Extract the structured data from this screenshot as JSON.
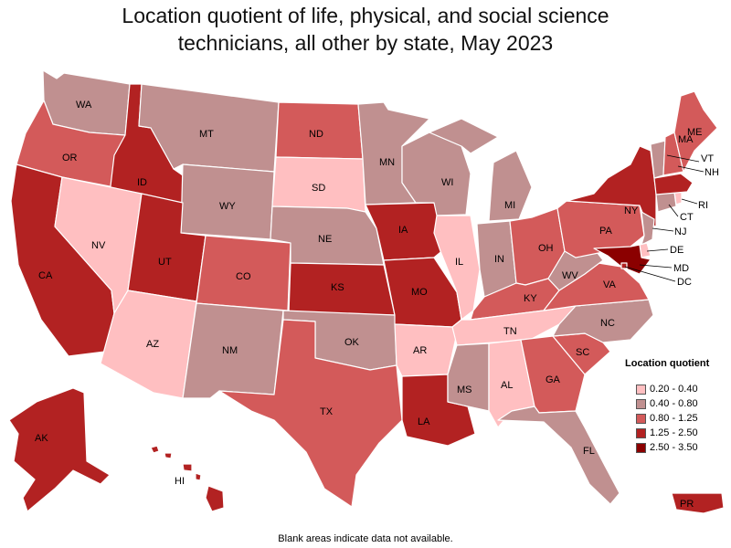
{
  "title_line1": "Location quotient of life, physical, and social science",
  "title_line2": "technicians, all other by state, May 2023",
  "legend": {
    "title": "Location quotient",
    "items": [
      {
        "label": "0.20 - 0.40",
        "color": "#ffbfc1"
      },
      {
        "label": "0.40 - 0.80",
        "color": "#c09090"
      },
      {
        "label": "0.80 - 1.25",
        "color": "#d35a5a"
      },
      {
        "label": "1.25 - 2.50",
        "color": "#b22222"
      },
      {
        "label": "2.50 - 3.50",
        "color": "#8b0000"
      }
    ]
  },
  "footnote": "Blank areas indicate data not available.",
  "states": {
    "WA": {
      "label": "WA",
      "bin": 1
    },
    "OR": {
      "label": "OR",
      "bin": 2
    },
    "CA": {
      "label": "CA",
      "bin": 3
    },
    "ID": {
      "label": "ID",
      "bin": 3
    },
    "NV": {
      "label": "NV",
      "bin": 0
    },
    "MT": {
      "label": "MT",
      "bin": 1
    },
    "WY": {
      "label": "WY",
      "bin": 1
    },
    "UT": {
      "label": "UT",
      "bin": 3
    },
    "AZ": {
      "label": "AZ",
      "bin": 0
    },
    "CO": {
      "label": "CO",
      "bin": 2
    },
    "NM": {
      "label": "NM",
      "bin": 1
    },
    "ND": {
      "label": "ND",
      "bin": 2
    },
    "SD": {
      "label": "SD",
      "bin": 0
    },
    "NE": {
      "label": "NE",
      "bin": 1
    },
    "KS": {
      "label": "KS",
      "bin": 3
    },
    "OK": {
      "label": "OK",
      "bin": 1
    },
    "TX": {
      "label": "TX",
      "bin": 2
    },
    "MN": {
      "label": "MN",
      "bin": 1
    },
    "IA": {
      "label": "IA",
      "bin": 3
    },
    "MO": {
      "label": "MO",
      "bin": 3
    },
    "AR": {
      "label": "AR",
      "bin": 0
    },
    "LA": {
      "label": "LA",
      "bin": 3
    },
    "WI": {
      "label": "WI",
      "bin": 1
    },
    "IL": {
      "label": "IL",
      "bin": 0
    },
    "MI": {
      "label": "MI",
      "bin": 1
    },
    "IN": {
      "label": "IN",
      "bin": 1
    },
    "OH": {
      "label": "OH",
      "bin": 2
    },
    "KY": {
      "label": "KY",
      "bin": 2
    },
    "TN": {
      "label": "TN",
      "bin": 0
    },
    "MS": {
      "label": "MS",
      "bin": 1
    },
    "AL": {
      "label": "AL",
      "bin": 0
    },
    "GA": {
      "label": "GA",
      "bin": 2
    },
    "FL": {
      "label": "FL",
      "bin": 1
    },
    "SC": {
      "label": "SC",
      "bin": 2
    },
    "NC": {
      "label": "NC",
      "bin": 1
    },
    "VA": {
      "label": "VA",
      "bin": 2
    },
    "WV": {
      "label": "WV",
      "bin": 1
    },
    "PA": {
      "label": "PA",
      "bin": 2
    },
    "NY": {
      "label": "NY",
      "bin": 3
    },
    "VT": {
      "label": "VT",
      "bin": 1
    },
    "NH": {
      "label": "NH",
      "bin": 2
    },
    "ME": {
      "label": "ME",
      "bin": 2
    },
    "MA": {
      "label": "MA",
      "bin": 3
    },
    "RI": {
      "label": "RI",
      "bin": 0
    },
    "CT": {
      "label": "CT",
      "bin": 1
    },
    "NJ": {
      "label": "NJ",
      "bin": 1
    },
    "DE": {
      "label": "DE",
      "bin": 0
    },
    "MD": {
      "label": "MD",
      "bin": 4
    },
    "DC": {
      "label": "DC",
      "bin": 3
    },
    "AK": {
      "label": "AK",
      "bin": 3
    },
    "HI": {
      "label": "HI",
      "bin": 3
    },
    "PR": {
      "label": "PR",
      "bin": 3
    }
  }
}
